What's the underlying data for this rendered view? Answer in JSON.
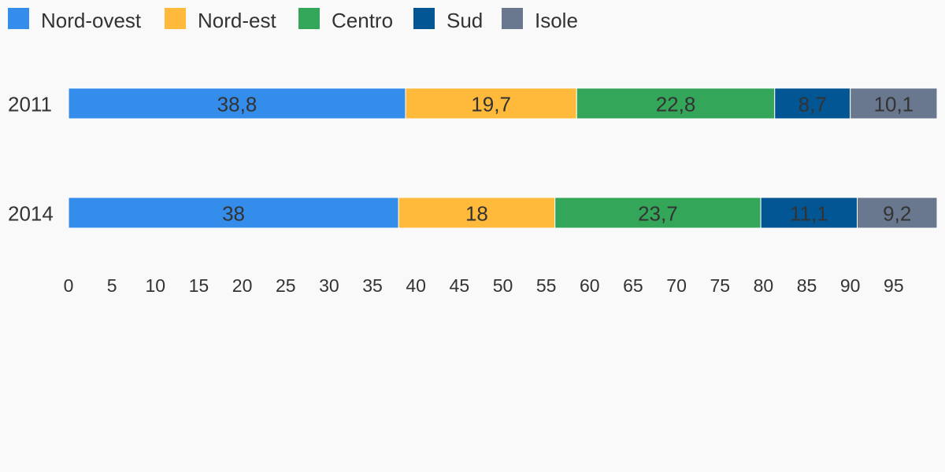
{
  "chart_data": {
    "type": "bar",
    "orientation": "horizontal",
    "stacked": true,
    "categories": [
      "2011",
      "2014"
    ],
    "series": [
      {
        "name": "Nord-ovest",
        "values": [
          38.8,
          38
        ],
        "labels": [
          "38,8",
          "38"
        ],
        "color": "#348ceb"
      },
      {
        "name": "Nord-est",
        "values": [
          19.7,
          18
        ],
        "labels": [
          "19,7",
          "18"
        ],
        "color": "#ffb93b"
      },
      {
        "name": "Centro",
        "values": [
          22.8,
          23.7
        ],
        "labels": [
          "22,8",
          "23,7"
        ],
        "color": "#34a65a"
      },
      {
        "name": "Sud",
        "values": [
          8.7,
          11.1
        ],
        "labels": [
          "8,7",
          "11,1"
        ],
        "color": "#035694"
      },
      {
        "name": "Isole",
        "values": [
          10.1,
          9.2
        ],
        "labels": [
          "10,1",
          "9,2"
        ],
        "color": "#69788f"
      }
    ],
    "xlim": [
      0,
      100
    ],
    "xticks": [
      "0",
      "5",
      "10",
      "15",
      "20",
      "25",
      "30",
      "35",
      "40",
      "45",
      "50",
      "55",
      "60",
      "65",
      "70",
      "75",
      "80",
      "85",
      "90",
      "95"
    ],
    "title": "",
    "xlabel": "",
    "ylabel": "",
    "grid": false,
    "legend_position": "top-left"
  }
}
